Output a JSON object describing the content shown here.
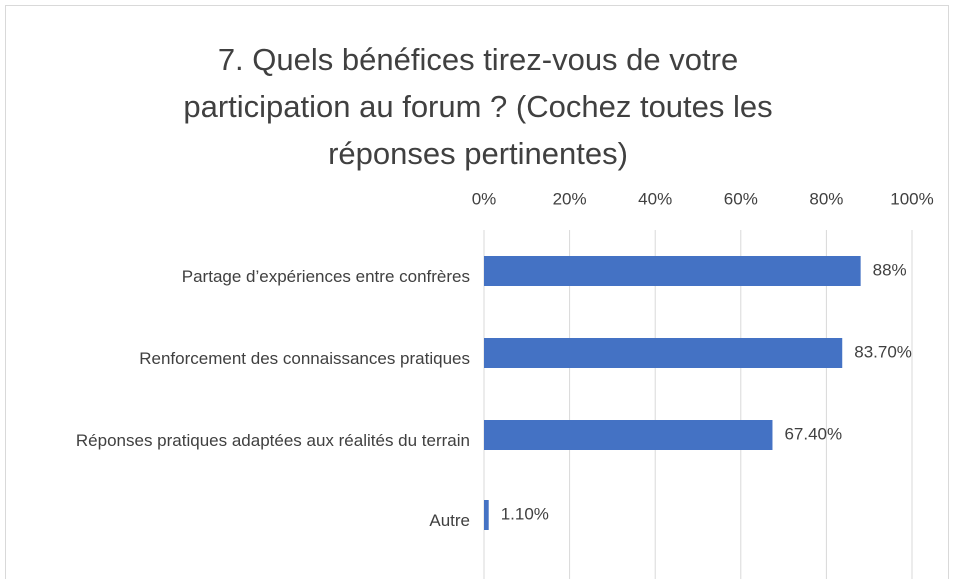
{
  "chart_data": {
    "type": "bar",
    "orientation": "horizontal",
    "title": "7. Quels bénéfices tirez-vous de votre participation au forum ? (Cochez toutes les réponses pertinentes)",
    "categories": [
      "Partage d’expériences entre confrères",
      "Renforcement des connaissances pratiques",
      "Réponses pratiques adaptées aux réalités du terrain",
      "Autre"
    ],
    "values": [
      88,
      83.7,
      67.4,
      1.1
    ],
    "value_labels": [
      "88%",
      "83.70%",
      "67.40%",
      "1.10%"
    ],
    "color": "#4472c4",
    "xlim": [
      0,
      100
    ],
    "xticks": [
      {
        "value": 0,
        "label": "0%"
      },
      {
        "value": 20,
        "label": "20%"
      },
      {
        "value": 40,
        "label": "40%"
      },
      {
        "value": 60,
        "label": "60%"
      },
      {
        "value": 80,
        "label": "80%"
      },
      {
        "value": 100,
        "label": "100%"
      }
    ],
    "grid": true
  }
}
